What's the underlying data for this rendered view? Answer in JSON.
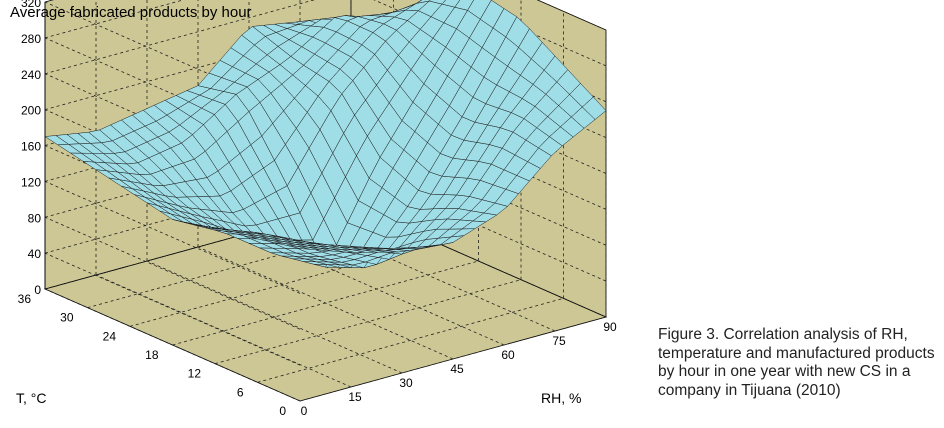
{
  "caption": "Figure 3. Correlation analysis of RH, temperature and manufactured products by hour in one year with new CS in a company in Tijuana (2010)",
  "colors": {
    "wall": "#cdc795",
    "surface": "#9fdde7",
    "mesh": "#1b1b1b",
    "grid": "#222222"
  },
  "chart_data": {
    "type": "surface",
    "title": "Average fabricated products by hour",
    "xlabel": "RH, %",
    "ylabel": "T, °C",
    "zlabel": "",
    "xlim": [
      0,
      90
    ],
    "ylim": [
      0,
      36
    ],
    "zlim": [
      0,
      320
    ],
    "xticks": [
      "0",
      "15",
      "30",
      "45",
      "60",
      "75",
      "90"
    ],
    "yticks": [
      "0",
      "6",
      "12",
      "18",
      "24",
      "30",
      "36"
    ],
    "zticks": [
      "0",
      "40",
      "80",
      "120",
      "160",
      "200",
      "240",
      "280",
      "320"
    ],
    "grid": true,
    "x": [
      0,
      15,
      30,
      45,
      60,
      75,
      90
    ],
    "y": [
      0,
      6,
      12,
      18,
      24,
      30,
      36
    ],
    "z": [
      [
        170,
        150,
        135,
        130,
        150,
        200,
        230
      ],
      [
        160,
        140,
        120,
        100,
        140,
        210,
        260
      ],
      [
        150,
        130,
        90,
        60,
        120,
        200,
        290
      ],
      [
        140,
        110,
        70,
        40,
        140,
        220,
        300
      ],
      [
        150,
        120,
        100,
        120,
        200,
        250,
        280
      ],
      [
        160,
        140,
        150,
        190,
        210,
        250,
        230
      ],
      [
        170,
        160,
        170,
        180,
        230,
        220,
        150
      ]
    ]
  }
}
